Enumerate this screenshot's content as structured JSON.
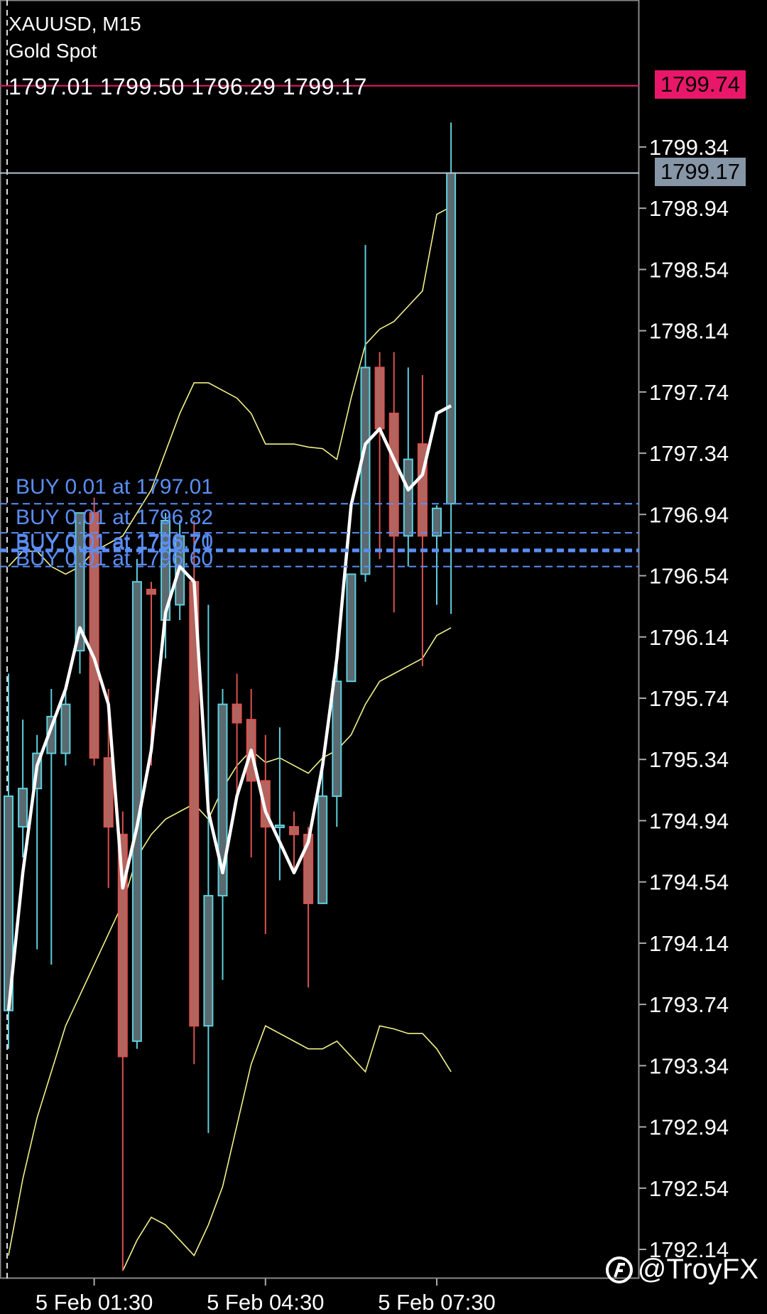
{
  "header": {
    "symbol": "XAUUSD, M15",
    "description": "Gold Spot",
    "ohlc": "1797.01 1799.50 1796.29 1799.17"
  },
  "price_boxes": {
    "ask": "1799.74",
    "bid": "1799.17",
    "ask_color": "#e8176a",
    "bid_color": "#8696a7"
  },
  "orders": [
    {
      "label": "BUY 0.01 at 1797.01",
      "price": 1797.01
    },
    {
      "label": "BUY 0.01 at 1796.82",
      "price": 1796.82
    },
    {
      "label": "BUY 0.01 at 1796.70",
      "price": 1796.7
    },
    {
      "label": "BUY 0.01 at 1796.71",
      "price": 1796.71
    },
    {
      "label": "BUY 0.01 at 1796.60",
      "price": 1796.6
    }
  ],
  "watermark": "@TroyFX",
  "colors": {
    "bull": "#5ecfdc",
    "bear": "#d9534f",
    "bear_body": "#b2645f",
    "ma": "#ffffff",
    "bands": "#f3f08a",
    "orders": "#5b8ef5",
    "grid": "#2a2a2a"
  },
  "chart_data": {
    "type": "candlestick",
    "symbol": "XAUUSD",
    "timeframe": "M15",
    "ylim": [
      1791.95,
      1800.3
    ],
    "y_ticks": [
      "1799.34",
      "1798.94",
      "1798.54",
      "1798.14",
      "1797.74",
      "1797.34",
      "1796.94",
      "1796.54",
      "1796.14",
      "1795.74",
      "1795.34",
      "1794.94",
      "1794.54",
      "1794.14",
      "1793.74",
      "1793.34",
      "1792.94",
      "1792.54",
      "1792.14"
    ],
    "x_ticks": [
      {
        "label": "5 Feb 01:30",
        "index": 6
      },
      {
        "label": "5 Feb 04:30",
        "index": 18
      },
      {
        "label": "5 Feb 07:30",
        "index": 30
      }
    ],
    "candles": [
      {
        "o": 1793.7,
        "h": 1795.9,
        "l": 1793.45,
        "c": 1795.1
      },
      {
        "o": 1794.9,
        "h": 1795.6,
        "l": 1794.7,
        "c": 1795.15
      },
      {
        "o": 1795.15,
        "h": 1795.5,
        "l": 1794.1,
        "c": 1795.38
      },
      {
        "o": 1795.38,
        "h": 1795.8,
        "l": 1794.0,
        "c": 1795.62
      },
      {
        "o": 1795.38,
        "h": 1795.8,
        "l": 1795.3,
        "c": 1795.7
      },
      {
        "o": 1796.05,
        "h": 1796.95,
        "l": 1795.9,
        "c": 1796.95
      },
      {
        "o": 1796.95,
        "h": 1797.05,
        "l": 1795.3,
        "c": 1795.35
      },
      {
        "o": 1795.35,
        "h": 1795.8,
        "l": 1794.5,
        "c": 1794.9
      },
      {
        "o": 1794.85,
        "h": 1795.0,
        "l": 1792.0,
        "c": 1793.4
      },
      {
        "o": 1793.5,
        "h": 1796.65,
        "l": 1793.45,
        "c": 1796.5
      },
      {
        "o": 1796.45,
        "h": 1796.5,
        "l": 1795.3,
        "c": 1796.42
      },
      {
        "o": 1796.25,
        "h": 1796.95,
        "l": 1796.0,
        "c": 1796.9
      },
      {
        "o": 1796.35,
        "h": 1796.9,
        "l": 1796.25,
        "c": 1796.8
      },
      {
        "o": 1796.5,
        "h": 1796.9,
        "l": 1793.35,
        "c": 1793.6
      },
      {
        "o": 1793.6,
        "h": 1796.35,
        "l": 1792.9,
        "c": 1794.45
      },
      {
        "o": 1794.45,
        "h": 1795.8,
        "l": 1793.9,
        "c": 1795.7
      },
      {
        "o": 1795.7,
        "h": 1795.9,
        "l": 1795.1,
        "c": 1795.58
      },
      {
        "o": 1795.6,
        "h": 1795.8,
        "l": 1794.7,
        "c": 1795.2
      },
      {
        "o": 1795.2,
        "h": 1795.5,
        "l": 1794.2,
        "c": 1794.9
      },
      {
        "o": 1794.9,
        "h": 1795.55,
        "l": 1794.55,
        "c": 1794.91
      },
      {
        "o": 1794.9,
        "h": 1795.0,
        "l": 1794.6,
        "c": 1794.85
      },
      {
        "o": 1794.85,
        "h": 1794.9,
        "l": 1793.85,
        "c": 1794.4
      },
      {
        "o": 1794.4,
        "h": 1795.35,
        "l": 1794.4,
        "c": 1795.1
      },
      {
        "o": 1795.1,
        "h": 1796.0,
        "l": 1794.9,
        "c": 1795.85
      },
      {
        "o": 1795.85,
        "h": 1796.55,
        "l": 1795.9,
        "c": 1796.55
      },
      {
        "o": 1796.55,
        "h": 1798.7,
        "l": 1796.5,
        "c": 1797.9
      },
      {
        "o": 1797.9,
        "h": 1798.0,
        "l": 1796.65,
        "c": 1797.5
      },
      {
        "o": 1797.6,
        "h": 1798.0,
        "l": 1796.3,
        "c": 1796.8
      },
      {
        "o": 1796.8,
        "h": 1797.9,
        "l": 1796.6,
        "c": 1797.3
      },
      {
        "o": 1797.4,
        "h": 1797.85,
        "l": 1795.95,
        "c": 1796.8
      },
      {
        "o": 1796.8,
        "h": 1797.0,
        "l": 1796.35,
        "c": 1796.98
      },
      {
        "o": 1797.01,
        "h": 1799.5,
        "l": 1796.29,
        "c": 1799.17
      }
    ],
    "moving_average": [
      1793.7,
      1794.6,
      1795.3,
      1795.55,
      1795.8,
      1796.2,
      1796.0,
      1795.7,
      1794.5,
      1794.9,
      1795.4,
      1796.3,
      1796.6,
      1796.5,
      1795.0,
      1794.6,
      1795.1,
      1795.4,
      1795.0,
      1794.8,
      1794.6,
      1794.8,
      1795.3,
      1796.0,
      1797.0,
      1797.4,
      1797.5,
      1797.3,
      1797.1,
      1797.2,
      1797.6,
      1797.65
    ],
    "upper_band": [
      1796.6,
      1796.7,
      1796.7,
      1796.6,
      1796.55,
      1796.6,
      1796.7,
      1796.75,
      1796.8,
      1796.95,
      1797.1,
      1797.35,
      1797.6,
      1797.8,
      1797.8,
      1797.75,
      1797.7,
      1797.6,
      1797.4,
      1797.4,
      1797.4,
      1797.38,
      1797.37,
      1797.3,
      1797.7,
      1798.05,
      1798.15,
      1798.2,
      1798.3,
      1798.4,
      1798.9,
      1798.95
    ],
    "lower_band": [
      1792.1,
      1792.6,
      1793.0,
      1793.3,
      1793.6,
      1793.8,
      1794.0,
      1794.2,
      1794.4,
      1794.7,
      1794.85,
      1794.95,
      1795.0,
      1795.05,
      1794.95,
      1795.15,
      1795.3,
      1795.4,
      1795.32,
      1795.35,
      1795.3,
      1795.25,
      1795.35,
      1795.4,
      1795.5,
      1795.7,
      1795.85,
      1795.9,
      1795.95,
      1796.0,
      1796.15,
      1796.2
    ],
    "lower_band_2": [
      null,
      null,
      null,
      null,
      null,
      null,
      null,
      null,
      1792.0,
      1792.2,
      1792.35,
      1792.3,
      1792.2,
      1792.1,
      1792.3,
      1792.55,
      1792.95,
      1793.35,
      1793.6,
      1793.55,
      1793.5,
      1793.45,
      1793.45,
      1793.5,
      1793.4,
      1793.3,
      1793.6,
      1793.58,
      1793.55,
      1793.55,
      1793.45,
      1793.3
    ]
  }
}
